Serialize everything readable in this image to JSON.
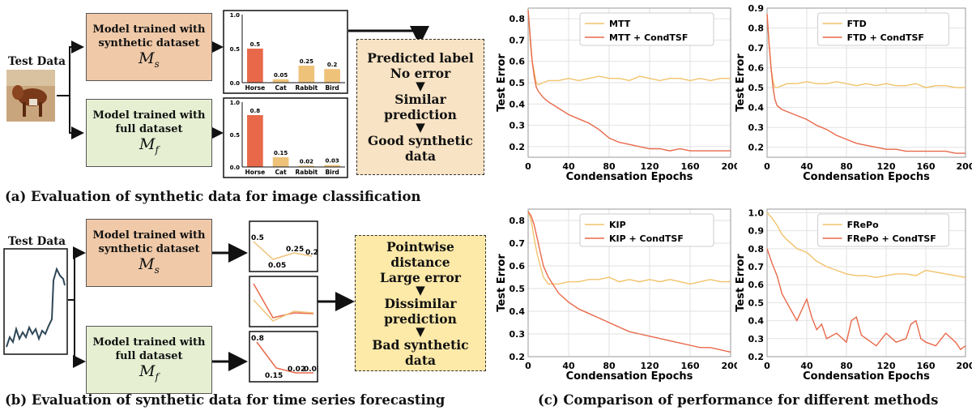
{
  "panel_a": {
    "test_label": "Test Data",
    "model_syn": {
      "line1": "Model trained with",
      "line2": "synthetic dataset",
      "symbol": "M",
      "sub": "s"
    },
    "model_full": {
      "line1": "Model trained with",
      "line2": "full dataset",
      "symbol": "M",
      "sub": "f"
    },
    "result_lines": [
      "Predicted label",
      "No error",
      "Similar prediction",
      "Good synthetic",
      "data"
    ],
    "caption": "(a) Evaluation of synthetic data for image classification"
  },
  "panel_b": {
    "test_label": "Test Data",
    "model_syn": {
      "line1": "Model trained with",
      "line2": "synthetic dataset",
      "symbol": "M",
      "sub": "s"
    },
    "model_full": {
      "line1": "Model trained with",
      "line2": "full dataset",
      "symbol": "M",
      "sub": "f"
    },
    "result_lines": [
      "Pointwise distance",
      "Large error",
      "Dissimilar",
      "prediction",
      "Bad synthetic data"
    ],
    "syn_labels": [
      "0.5",
      "0.05",
      "0.25",
      "0.2"
    ],
    "full_labels": [
      "0.8",
      "0.15",
      "0.02",
      "0.03"
    ],
    "caption": "(b) Evaluation of synthetic data for time series forecasting"
  },
  "panel_c": {
    "caption": "(c) Comparison of performance for different methods"
  },
  "chart_data": [
    {
      "id": "bar-syn",
      "type": "bar",
      "categories": [
        "Horse",
        "Cat",
        "Rabbit",
        "Bird"
      ],
      "values": [
        0.5,
        0.05,
        0.25,
        0.2
      ],
      "ylim": [
        0,
        1.0
      ],
      "yticks": [
        "0.0",
        "0.5",
        "1.0"
      ],
      "colors": [
        "#e8694a",
        "#efc27a",
        "#efc27a",
        "#efc27a"
      ]
    },
    {
      "id": "bar-full",
      "type": "bar",
      "categories": [
        "Horse",
        "Cat",
        "Rabbit",
        "Bird"
      ],
      "values": [
        0.8,
        0.15,
        0.02,
        0.03
      ],
      "ylim": [
        0,
        1.0
      ],
      "yticks": [
        "0.0",
        "0.5",
        "1.0"
      ],
      "colors": [
        "#e8694a",
        "#efc27a",
        "#efc27a",
        "#efc27a"
      ]
    },
    {
      "id": "line-mtt",
      "type": "line",
      "xlabel": "Condensation Epochs",
      "ylabel": "Test Error",
      "xlim": [
        0,
        200
      ],
      "ylim": [
        0.15,
        0.85
      ],
      "xticks": [
        0,
        40,
        80,
        120,
        160,
        200
      ],
      "yticks": [
        0.2,
        0.3,
        0.4,
        0.5,
        0.6,
        0.7,
        0.8
      ],
      "legend_position": "top-center",
      "series": [
        {
          "name": "MTT",
          "color": "#f2c26b",
          "x": [
            0,
            2,
            4,
            6,
            8,
            10,
            15,
            20,
            30,
            40,
            50,
            60,
            70,
            80,
            90,
            100,
            110,
            120,
            130,
            140,
            150,
            160,
            170,
            180,
            190,
            200
          ],
          "y": [
            0.84,
            0.7,
            0.6,
            0.55,
            0.5,
            0.49,
            0.5,
            0.51,
            0.51,
            0.52,
            0.51,
            0.52,
            0.53,
            0.52,
            0.52,
            0.51,
            0.53,
            0.52,
            0.51,
            0.52,
            0.52,
            0.51,
            0.52,
            0.51,
            0.52,
            0.52
          ]
        },
        {
          "name": "MTT + CondTSF",
          "color": "#e8694a",
          "x": [
            0,
            2,
            4,
            6,
            8,
            10,
            15,
            20,
            30,
            40,
            50,
            60,
            70,
            80,
            90,
            100,
            110,
            120,
            130,
            140,
            150,
            160,
            170,
            180,
            190,
            200
          ],
          "y": [
            0.84,
            0.72,
            0.6,
            0.53,
            0.48,
            0.46,
            0.43,
            0.41,
            0.38,
            0.35,
            0.33,
            0.31,
            0.28,
            0.24,
            0.22,
            0.21,
            0.2,
            0.19,
            0.19,
            0.18,
            0.19,
            0.18,
            0.18,
            0.18,
            0.18,
            0.18
          ]
        }
      ]
    },
    {
      "id": "line-ftd",
      "type": "line",
      "xlabel": "Condensation Epochs",
      "ylabel": "Test Error",
      "xlim": [
        0,
        200
      ],
      "ylim": [
        0.15,
        0.9
      ],
      "xticks": [
        0,
        40,
        80,
        120,
        160,
        200
      ],
      "yticks": [
        0.2,
        0.3,
        0.4,
        0.5,
        0.6,
        0.7,
        0.8,
        0.9
      ],
      "legend_position": "top-center",
      "series": [
        {
          "name": "FTD",
          "color": "#f2c26b",
          "x": [
            0,
            2,
            4,
            6,
            8,
            10,
            15,
            20,
            30,
            40,
            50,
            60,
            70,
            80,
            90,
            100,
            110,
            120,
            130,
            140,
            150,
            160,
            170,
            180,
            190,
            200
          ],
          "y": [
            0.87,
            0.72,
            0.6,
            0.53,
            0.5,
            0.5,
            0.51,
            0.52,
            0.52,
            0.53,
            0.52,
            0.52,
            0.53,
            0.52,
            0.51,
            0.52,
            0.51,
            0.52,
            0.51,
            0.51,
            0.52,
            0.5,
            0.51,
            0.51,
            0.5,
            0.5
          ]
        },
        {
          "name": "FTD + CondTSF",
          "color": "#e8694a",
          "x": [
            0,
            2,
            4,
            6,
            8,
            10,
            15,
            20,
            30,
            40,
            50,
            60,
            70,
            80,
            90,
            100,
            110,
            120,
            130,
            140,
            150,
            160,
            170,
            180,
            190,
            200
          ],
          "y": [
            0.87,
            0.72,
            0.6,
            0.5,
            0.44,
            0.41,
            0.39,
            0.38,
            0.36,
            0.34,
            0.31,
            0.29,
            0.26,
            0.24,
            0.22,
            0.21,
            0.2,
            0.19,
            0.19,
            0.18,
            0.18,
            0.18,
            0.18,
            0.18,
            0.17,
            0.17
          ]
        }
      ]
    },
    {
      "id": "line-kip",
      "type": "line",
      "xlabel": "Condensation Epochs",
      "ylabel": "Test Error",
      "xlim": [
        0,
        200
      ],
      "ylim": [
        0.2,
        0.85
      ],
      "xticks": [
        0,
        40,
        80,
        120,
        160,
        200
      ],
      "yticks": [
        0.2,
        0.3,
        0.4,
        0.5,
        0.6,
        0.7,
        0.8
      ],
      "legend_position": "top-center",
      "series": [
        {
          "name": "KIP",
          "color": "#f2c26b",
          "x": [
            0,
            3,
            6,
            9,
            12,
            15,
            20,
            30,
            40,
            50,
            60,
            70,
            80,
            90,
            100,
            110,
            120,
            130,
            140,
            150,
            160,
            170,
            180,
            190,
            200
          ],
          "y": [
            0.84,
            0.8,
            0.72,
            0.65,
            0.6,
            0.55,
            0.52,
            0.52,
            0.53,
            0.53,
            0.54,
            0.54,
            0.55,
            0.53,
            0.54,
            0.53,
            0.54,
            0.53,
            0.54,
            0.53,
            0.52,
            0.53,
            0.54,
            0.53,
            0.53
          ]
        },
        {
          "name": "KIP + CondTSF",
          "color": "#e8694a",
          "x": [
            0,
            3,
            6,
            9,
            12,
            15,
            20,
            30,
            40,
            50,
            60,
            70,
            80,
            90,
            100,
            110,
            120,
            130,
            140,
            150,
            160,
            170,
            180,
            190,
            200
          ],
          "y": [
            0.84,
            0.82,
            0.78,
            0.72,
            0.66,
            0.6,
            0.55,
            0.48,
            0.44,
            0.41,
            0.39,
            0.37,
            0.35,
            0.33,
            0.31,
            0.3,
            0.29,
            0.28,
            0.27,
            0.26,
            0.25,
            0.24,
            0.24,
            0.23,
            0.22
          ]
        }
      ]
    },
    {
      "id": "line-frepo",
      "type": "line",
      "xlabel": "Condensation Epochs",
      "ylabel": "Test Error",
      "xlim": [
        0,
        200
      ],
      "ylim": [
        0.2,
        1.02
      ],
      "xticks": [
        0,
        40,
        80,
        120,
        160,
        200
      ],
      "yticks": [
        0.2,
        0.3,
        0.4,
        0.5,
        0.6,
        0.7,
        0.8,
        0.9,
        1.0
      ],
      "legend_position": "top-center",
      "series": [
        {
          "name": "FRePo",
          "color": "#f2c26b",
          "x": [
            0,
            5,
            10,
            15,
            20,
            30,
            40,
            50,
            60,
            70,
            80,
            90,
            100,
            110,
            120,
            130,
            140,
            150,
            160,
            170,
            180,
            190,
            200
          ],
          "y": [
            1.0,
            0.97,
            0.93,
            0.88,
            0.85,
            0.8,
            0.78,
            0.73,
            0.7,
            0.68,
            0.66,
            0.65,
            0.65,
            0.64,
            0.65,
            0.66,
            0.66,
            0.65,
            0.68,
            0.67,
            0.66,
            0.65,
            0.64
          ]
        },
        {
          "name": "FRePo + CondTSF",
          "color": "#e8694a",
          "x": [
            0,
            5,
            10,
            15,
            20,
            25,
            30,
            40,
            45,
            50,
            55,
            60,
            70,
            80,
            85,
            90,
            95,
            100,
            110,
            120,
            130,
            140,
            145,
            150,
            155,
            160,
            170,
            180,
            190,
            195,
            200
          ],
          "y": [
            0.8,
            0.72,
            0.65,
            0.55,
            0.5,
            0.45,
            0.4,
            0.52,
            0.42,
            0.35,
            0.38,
            0.3,
            0.33,
            0.28,
            0.4,
            0.42,
            0.32,
            0.3,
            0.26,
            0.33,
            0.28,
            0.3,
            0.38,
            0.4,
            0.3,
            0.28,
            0.26,
            0.33,
            0.28,
            0.24,
            0.26
          ]
        }
      ]
    }
  ]
}
